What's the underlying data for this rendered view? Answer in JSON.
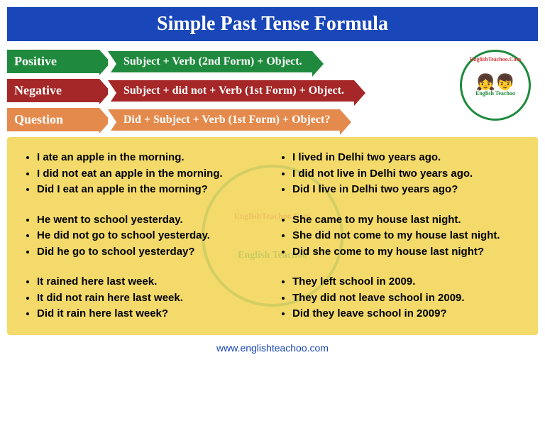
{
  "title": "Simple Past Tense Formula",
  "colors": {
    "header_bg": "#1946b8",
    "positive": "#1f8a3d",
    "negative": "#a52727",
    "question": "#e58a4d",
    "examples_bg": "#f3da6a",
    "footer_text": "#1946b8"
  },
  "formulas": {
    "positive": {
      "label": "Positive",
      "text": "Subject + Verb (2nd Form) + Object."
    },
    "negative": {
      "label": "Negative",
      "text": "Subject + did not + Verb (1st Form) + Object."
    },
    "question": {
      "label": "Question",
      "text": "Did + Subject + Verb (1st Form) + Object?"
    }
  },
  "logo": {
    "top_text": "EnglishTeachoo.Com",
    "sub_text": "English Teachoo"
  },
  "examples": {
    "left": [
      [
        "I ate an apple in the morning.",
        "I did not eat an apple in the morning.",
        "Did I eat an apple in the morning?"
      ],
      [
        "He went to school yesterday.",
        "He did not go to school yesterday.",
        "Did he go to school yesterday?"
      ],
      [
        "It rained here last week.",
        "It did not rain here last week.",
        "Did it rain here last week?"
      ]
    ],
    "right": [
      [
        "I lived in Delhi two years ago.",
        "I did not live in Delhi two years ago.",
        "Did I live in Delhi two years ago?"
      ],
      [
        "She came to my house last night.",
        "She did not come to my house last night.",
        "Did she come to my house last night?"
      ],
      [
        "They left school in 2009.",
        "They did not leave school in 2009.",
        "Did they leave school in 2009?"
      ]
    ]
  },
  "footer": "www.englishteachoo.com"
}
